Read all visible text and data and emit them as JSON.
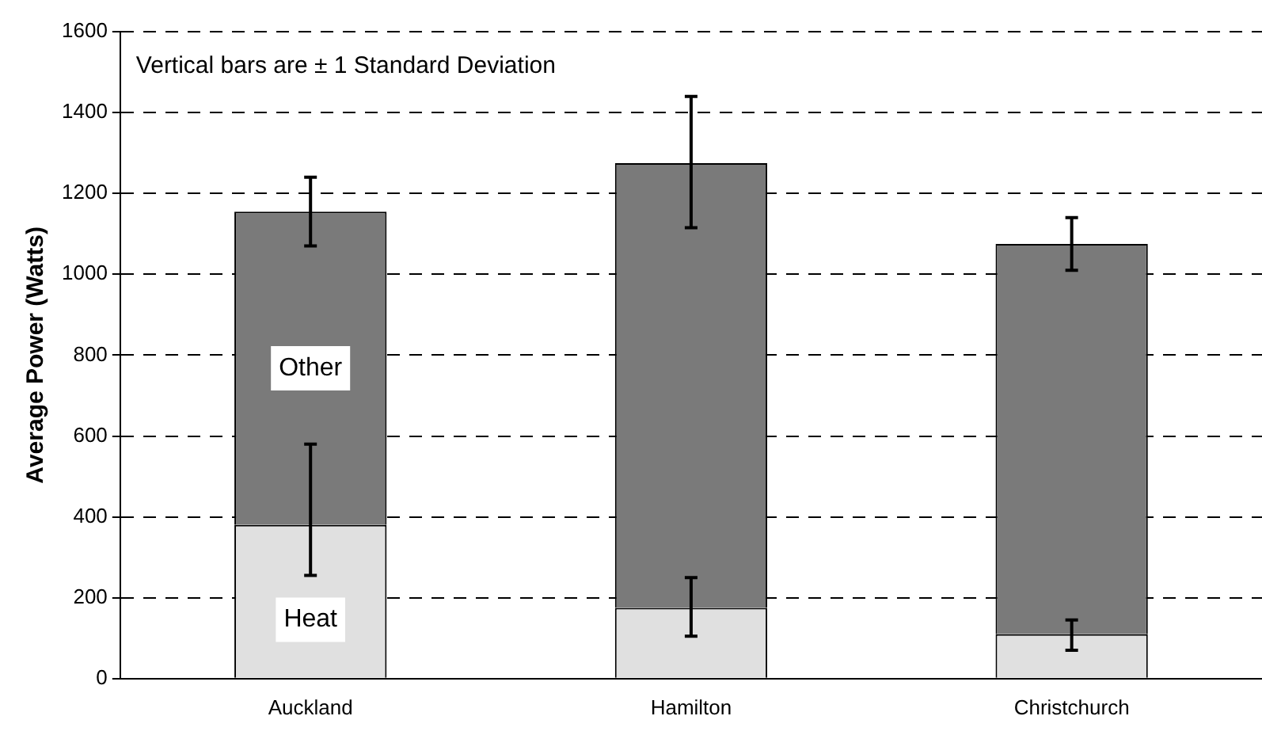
{
  "chart_data": {
    "type": "bar",
    "ylabel": "Average Power (Watts)",
    "categories": [
      "Auckland",
      "Hamilton",
      "Christchurch"
    ],
    "stacked": true,
    "series": [
      {
        "name": "Heat",
        "color": "#e0e0e0",
        "values": [
          380,
          175,
          110
        ],
        "errors": [
          [
            255,
            580
          ],
          [
            105,
            250
          ],
          [
            70,
            145
          ]
        ]
      },
      {
        "name": "Other",
        "color": "#7a7a7a",
        "values": [
          775,
          1100,
          965
        ],
        "errors": [
          [
            1070,
            1240
          ],
          [
            1115,
            1440
          ],
          [
            1010,
            1140
          ]
        ]
      }
    ],
    "ylim": [
      0,
      1600
    ],
    "yticks": [
      0,
      200,
      400,
      600,
      800,
      1000,
      1200,
      1400,
      1600
    ],
    "grid": "y",
    "legend": false,
    "annotations": [
      "Vertical bars are ± 1 Standard Deviation"
    ]
  }
}
